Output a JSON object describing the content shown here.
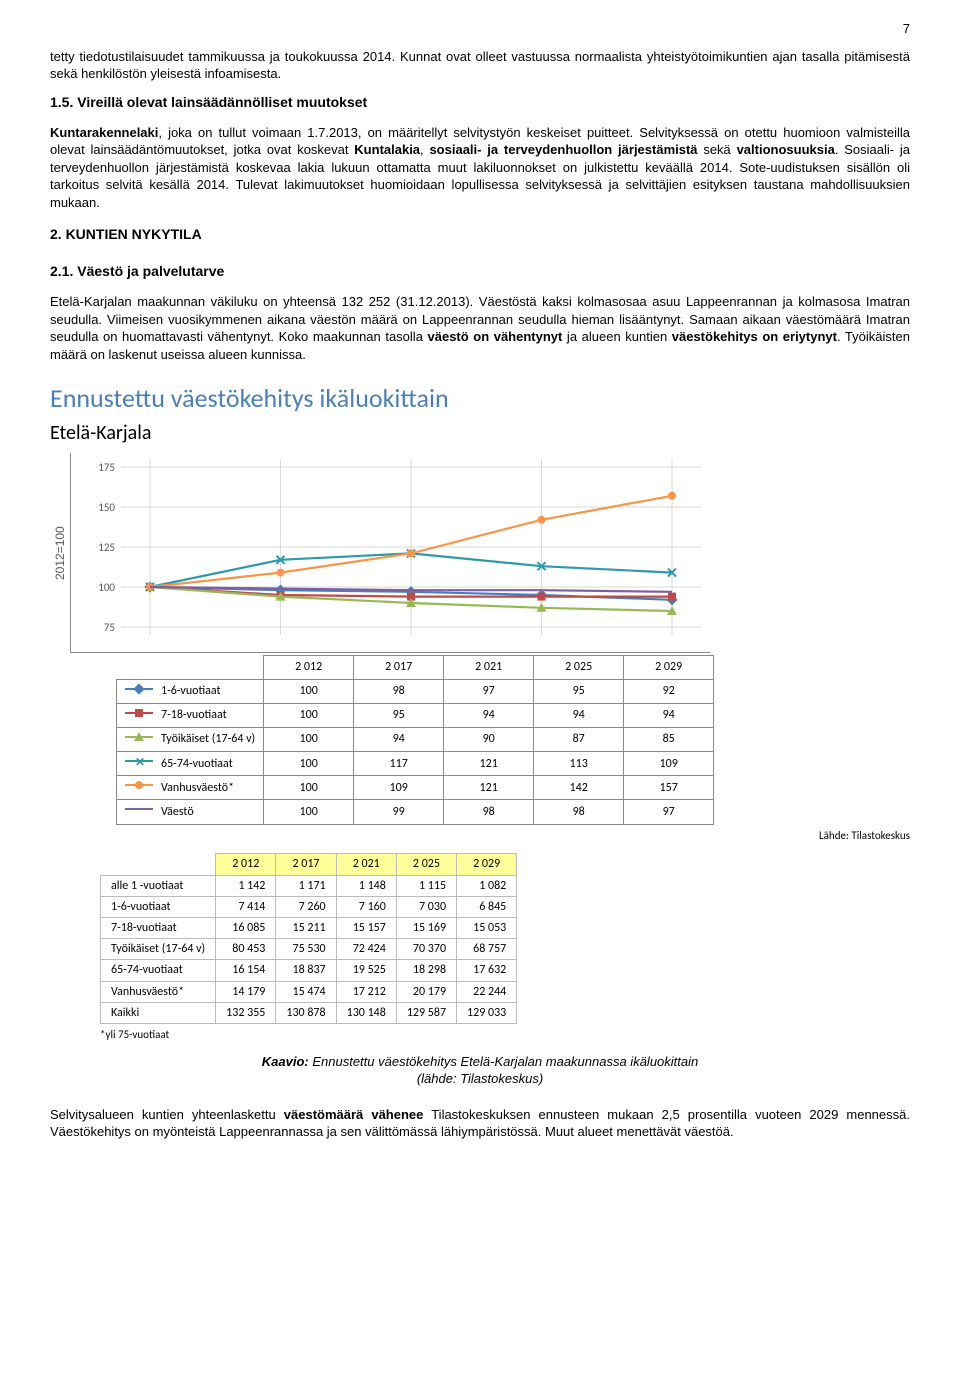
{
  "page_number": "7",
  "para1": "tetty tiedotustilaisuudet tammikuussa ja toukokuussa 2014. Kunnat ovat olleet vastuussa normaalista yhteistyötoimikuntien ajan tasalla pitämisestä sekä henkilöstön yleisestä infoamisesta.",
  "section15_title": "1.5.   Vireillä olevat lainsäädännölliset muutokset",
  "para2_a": "Kuntarakennelaki",
  "para2_b": ", joka on tullut voimaan 1.7.2013, on määritellyt selvitystyön keskeiset puitteet. Selvityksessä on otettu huomioon valmisteilla olevat lainsäädäntömuutokset, jotka ovat koskevat ",
  "para2_c": "Kuntalakia",
  "para2_d": ", ",
  "para2_e": "sosiaali- ja terveydenhuollon järjestämistä",
  "para2_f": " sekä ",
  "para2_g": "valtionosuuksia",
  "para2_h": ". Sosiaali- ja terveydenhuollon järjestämistä koskevaa lakia lukuun ottamatta muut lakiluonnokset on julkistettu keväällä 2014. Sote-uudistuksen sisällön oli tarkoitus selvitä kesällä 2014. Tulevat lakimuutokset huomioidaan lopullisessa selvityksessä ja selvittäjien esityksen taustana mahdollisuuksien mukaan.",
  "h2": "2.  KUNTIEN NYKYTILA",
  "h3": "2.1.   Väestö ja palvelutarve",
  "para3_a": "Etelä-Karjalan maakunnan väkiluku on yhteensä 132 252 (31.12.2013). Väestöstä kaksi kolmasosaa asuu Lappeenrannan ja kolmasosa Imatran seudulla. Viimeisen vuosikymmenen aikana väestön määrä on Lappeenrannan seudulla hieman lisääntynyt. Samaan aikaan väestömäärä Imatran seudulla on huomattavasti vähentynyt. Koko maakunnan tasolla ",
  "para3_b": "väestö on vähentynyt",
  "para3_c": " ja alueen kuntien ",
  "para3_d": "väestökehitys on eriytynyt",
  "para3_e": ". Työikäisten määrä on laskenut useissa alueen kunnissa.",
  "chart": {
    "title": "Ennustettu väestökehitys ikäluokittain",
    "subtitle": "Etelä-Karjala",
    "ylabel": "2012=100",
    "ymin": 70,
    "ymax": 180,
    "yticks": [
      75,
      100,
      125,
      150,
      175
    ],
    "xcats": [
      "2 012",
      "2 017",
      "2 021",
      "2 025",
      "2 029"
    ],
    "grid_color": "#d9d9d9",
    "axis_color": "#888888",
    "series": [
      {
        "label": "1-6-vuotiaat",
        "color": "#4a7ebb",
        "marker": "diamond",
        "values": [
          100,
          98,
          97,
          95,
          92
        ]
      },
      {
        "label": "7-18-vuotiaat",
        "color": "#be4b48",
        "marker": "square",
        "values": [
          100,
          95,
          94,
          94,
          94
        ]
      },
      {
        "label": "Työikäiset (17-64 v)",
        "color": "#98b954",
        "marker": "triangle",
        "values": [
          100,
          94,
          90,
          87,
          85
        ]
      },
      {
        "label": "65-74-vuotiaat",
        "color": "#2c9aa9",
        "marker": "x",
        "values": [
          100,
          117,
          121,
          113,
          109
        ]
      },
      {
        "label": "Vanhusväestö*",
        "color": "#f79646",
        "marker": "circle",
        "values": [
          100,
          109,
          121,
          142,
          157
        ]
      },
      {
        "label": "Väestö",
        "color": "#7d60a0",
        "marker": "none",
        "values": [
          100,
          99,
          98,
          98,
          97
        ]
      }
    ],
    "source": "Lähde: Tilastokeskus"
  },
  "data_table": {
    "years": [
      "2 012",
      "2 017",
      "2 021",
      "2 025",
      "2 029"
    ],
    "rows": [
      {
        "label": "alle 1 -vuotiaat",
        "v": [
          "1 142",
          "1 171",
          "1 148",
          "1 115",
          "1 082"
        ]
      },
      {
        "label": "1-6-vuotiaat",
        "v": [
          "7 414",
          "7 260",
          "7 160",
          "7 030",
          "6 845"
        ]
      },
      {
        "label": "7-18-vuotiaat",
        "v": [
          "16 085",
          "15 211",
          "15 157",
          "15 169",
          "15 053"
        ]
      },
      {
        "label": "Työikäiset (17-64 v)",
        "v": [
          "80 453",
          "75 530",
          "72 424",
          "70 370",
          "68 757"
        ]
      },
      {
        "label": "65-74-vuotiaat",
        "v": [
          "16 154",
          "18 837",
          "19 525",
          "18 298",
          "17 632"
        ]
      },
      {
        "label": "Vanhusväestö*",
        "v": [
          "14 179",
          "15 474",
          "17 212",
          "20 179",
          "22 244"
        ]
      },
      {
        "label": "Kaikki",
        "v": [
          "132 355",
          "130 878",
          "130 148",
          "129 587",
          "129 033"
        ]
      }
    ],
    "footnote": "*yli 75-vuotiaat"
  },
  "caption_b": "Kaavio:",
  "caption_i": " Ennustettu väestökehitys Etelä-Karjalan maakunnassa ikäluokittain",
  "caption_src": "(lähde: Tilastokeskus)",
  "para4_a": "Selvitysalueen kuntien yhteenlaskettu ",
  "para4_b": "väestömäärä vähenee",
  "para4_c": " Tilastokeskuksen ennusteen mukaan 2,5 prosentilla vuoteen 2029 mennessä. Väestökehitys on myönteistä Lappeenrannassa ja sen välittömässä lähiympäristössä. Muut alueet menettävät väestöä."
}
